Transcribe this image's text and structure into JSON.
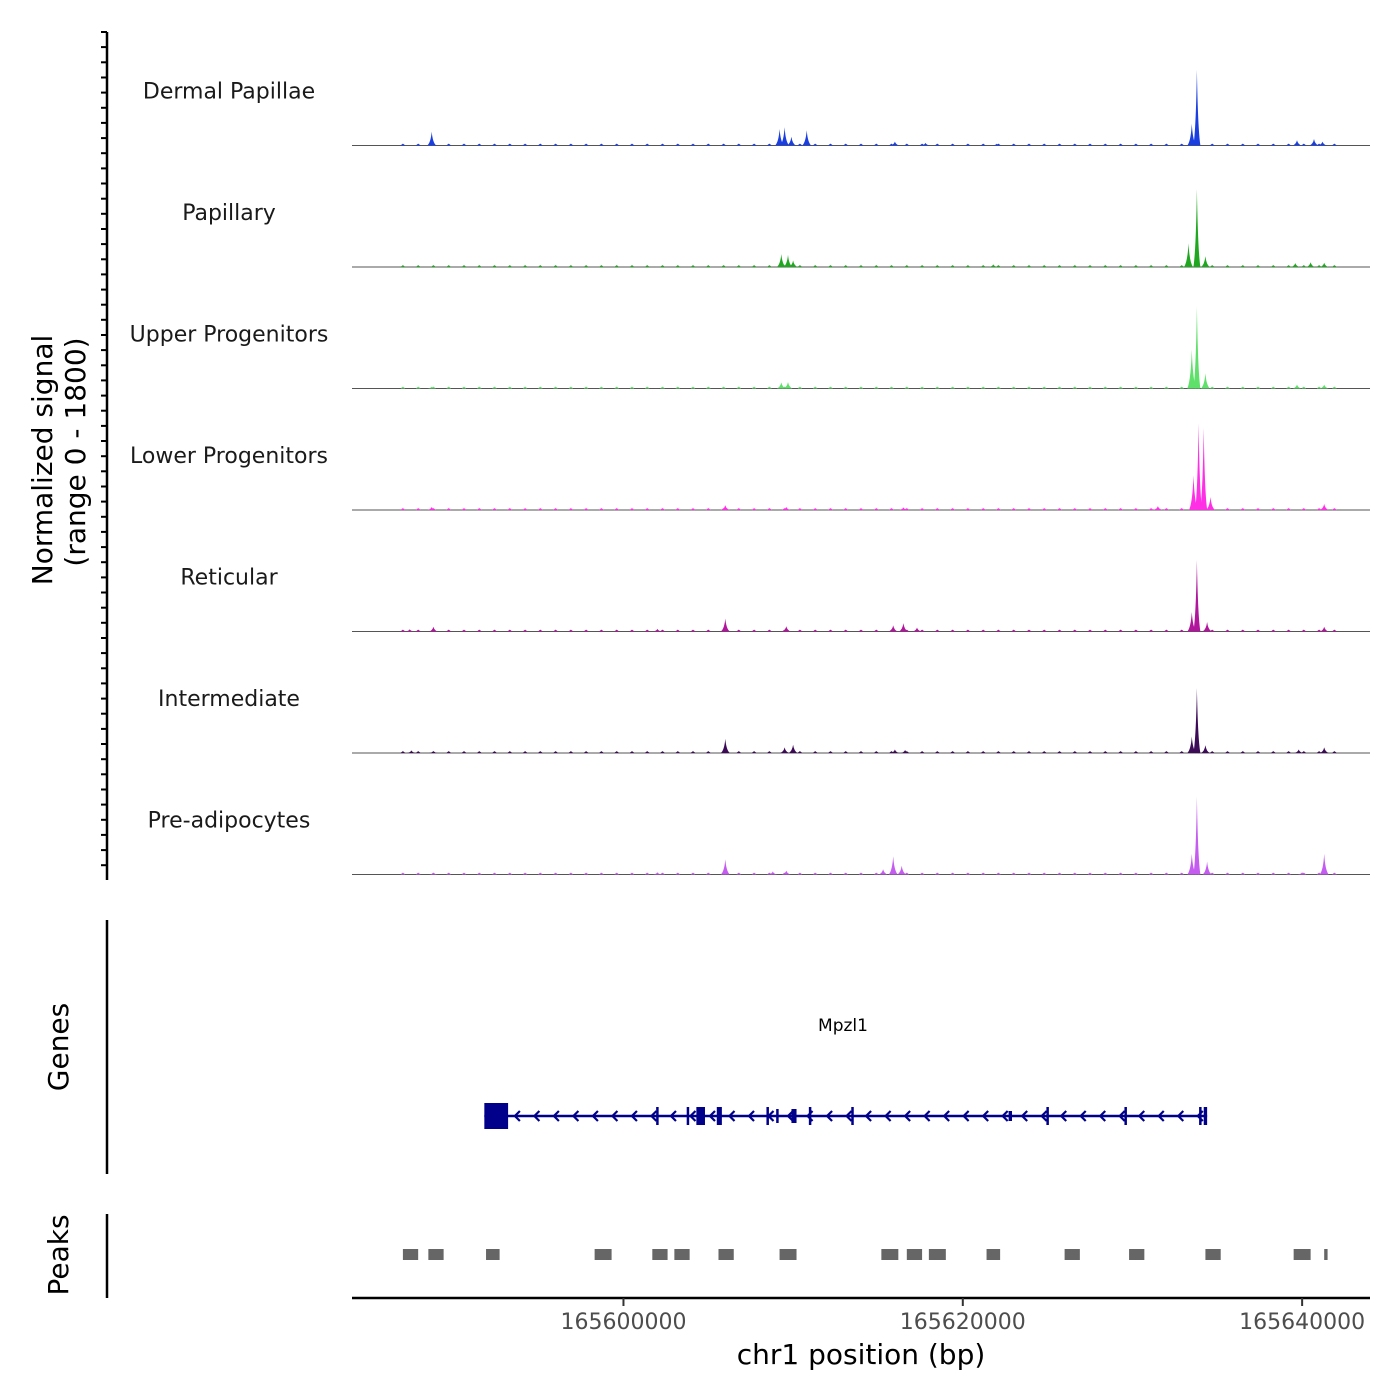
{
  "chart_data": {
    "type": "area",
    "chromosome": "chr1",
    "xlim": [
      165584000,
      165644000
    ],
    "ylim": [
      0,
      1800
    ],
    "ylabel_line1": "Normalized signal",
    "ylabel_line2": "(range 0 - 1800)",
    "xlabel": "chr1 position (bp)",
    "x_ticks": [
      165600000,
      165620000,
      165640000
    ],
    "x_tick_labels": [
      "165600000",
      "165620000",
      "165640000"
    ],
    "tracks": [
      {
        "name": "Dermal Papillae",
        "color": "#1a3ee0",
        "peaks": [
          [
            165588700,
            320
          ],
          [
            165609200,
            380
          ],
          [
            165609500,
            420
          ],
          [
            165609900,
            200
          ],
          [
            165610800,
            350
          ],
          [
            165616000,
            90
          ],
          [
            165617800,
            60
          ],
          [
            165622000,
            40
          ],
          [
            165633500,
            500
          ],
          [
            165633800,
            1750
          ],
          [
            165639700,
            120
          ],
          [
            165640700,
            150
          ],
          [
            165641200,
            90
          ]
        ]
      },
      {
        "name": "Papillary",
        "color": "#1fa81f",
        "peaks": [
          [
            165609300,
            300
          ],
          [
            165609700,
            280
          ],
          [
            165610000,
            150
          ],
          [
            165621800,
            60
          ],
          [
            165633300,
            550
          ],
          [
            165633800,
            1800
          ],
          [
            165634300,
            250
          ],
          [
            165639600,
            90
          ],
          [
            165640500,
            110
          ],
          [
            165641300,
            100
          ]
        ]
      },
      {
        "name": "Upper Progenitors",
        "color": "#5fe06a",
        "peaks": [
          [
            165588700,
            40
          ],
          [
            165609300,
            140
          ],
          [
            165609700,
            150
          ],
          [
            165633500,
            900
          ],
          [
            165633800,
            1900
          ],
          [
            165634300,
            350
          ],
          [
            165639700,
            90
          ],
          [
            165641300,
            90
          ]
        ]
      },
      {
        "name": "Lower Progenitors",
        "color": "#ff2fe6",
        "peaks": [
          [
            165588700,
            70
          ],
          [
            165606000,
            110
          ],
          [
            165609600,
            70
          ],
          [
            165616500,
            60
          ],
          [
            165631500,
            90
          ],
          [
            165633600,
            800
          ],
          [
            165633900,
            2000
          ],
          [
            165634200,
            1900
          ],
          [
            165634600,
            300
          ],
          [
            165641300,
            140
          ]
        ]
      },
      {
        "name": "Reticular",
        "color": "#b0159b",
        "peaks": [
          [
            165587400,
            50
          ],
          [
            165588800,
            110
          ],
          [
            165602000,
            60
          ],
          [
            165606000,
            300
          ],
          [
            165609600,
            120
          ],
          [
            165615900,
            140
          ],
          [
            165616500,
            190
          ],
          [
            165617300,
            90
          ],
          [
            165633500,
            450
          ],
          [
            165633800,
            1650
          ],
          [
            165634400,
            220
          ],
          [
            165641300,
            110
          ]
        ]
      },
      {
        "name": "Intermediate",
        "color": "#3d0a57",
        "peaks": [
          [
            165587500,
            60
          ],
          [
            165588800,
            40
          ],
          [
            165606000,
            330
          ],
          [
            165609500,
            130
          ],
          [
            165610000,
            190
          ],
          [
            165616000,
            80
          ],
          [
            165616600,
            70
          ],
          [
            165633500,
            380
          ],
          [
            165633800,
            1500
          ],
          [
            165634300,
            180
          ],
          [
            165639800,
            80
          ],
          [
            165641300,
            130
          ]
        ]
      },
      {
        "name": "Pre-adipocytes",
        "color": "#c55cf0",
        "peaks": [
          [
            165588800,
            40
          ],
          [
            165602000,
            50
          ],
          [
            165606000,
            350
          ],
          [
            165608800,
            70
          ],
          [
            165609600,
            90
          ],
          [
            165615300,
            120
          ],
          [
            165615900,
            420
          ],
          [
            165616400,
            200
          ],
          [
            165633500,
            480
          ],
          [
            165633800,
            1800
          ],
          [
            165634400,
            300
          ],
          [
            165640000,
            50
          ],
          [
            165641300,
            480
          ]
        ]
      }
    ],
    "gene_track": {
      "title": "Genes",
      "gene_name": "Mpzl1",
      "color": "#00008b",
      "start": 165591800,
      "end": 165634400,
      "strand": "-",
      "exons": [
        [
          165591800,
          165593200,
          26
        ],
        [
          165604300,
          165604800,
          18
        ],
        [
          165605500,
          165605800,
          18
        ],
        [
          165604300,
          165604800,
          18
        ],
        [
          165609000,
          165609100,
          14
        ],
        [
          165609900,
          165610200,
          14
        ],
        [
          165622700,
          165622900,
          10
        ],
        [
          165634200,
          165634400,
          18
        ]
      ],
      "exon_ticks": [
        165602000,
        165603800,
        165608500,
        165611000,
        165613500,
        165625000,
        165629600,
        165634000
      ]
    },
    "peaks_track": {
      "title": "Peaks",
      "color": "#666666",
      "regions": [
        [
          165587000,
          165587900
        ],
        [
          165588500,
          165589400
        ],
        [
          165591900,
          165592700
        ],
        [
          165598300,
          165599300
        ],
        [
          165601700,
          165602600
        ],
        [
          165603000,
          165603900
        ],
        [
          165605600,
          165606500
        ],
        [
          165609200,
          165610200
        ],
        [
          165615200,
          165616200
        ],
        [
          165616700,
          165617600
        ],
        [
          165618000,
          165619000
        ],
        [
          165621400,
          165622200
        ],
        [
          165626000,
          165626900
        ],
        [
          165629800,
          165630700
        ],
        [
          165634300,
          165635200
        ],
        [
          165639500,
          165640500
        ],
        [
          165641300,
          165641500
        ]
      ]
    }
  }
}
